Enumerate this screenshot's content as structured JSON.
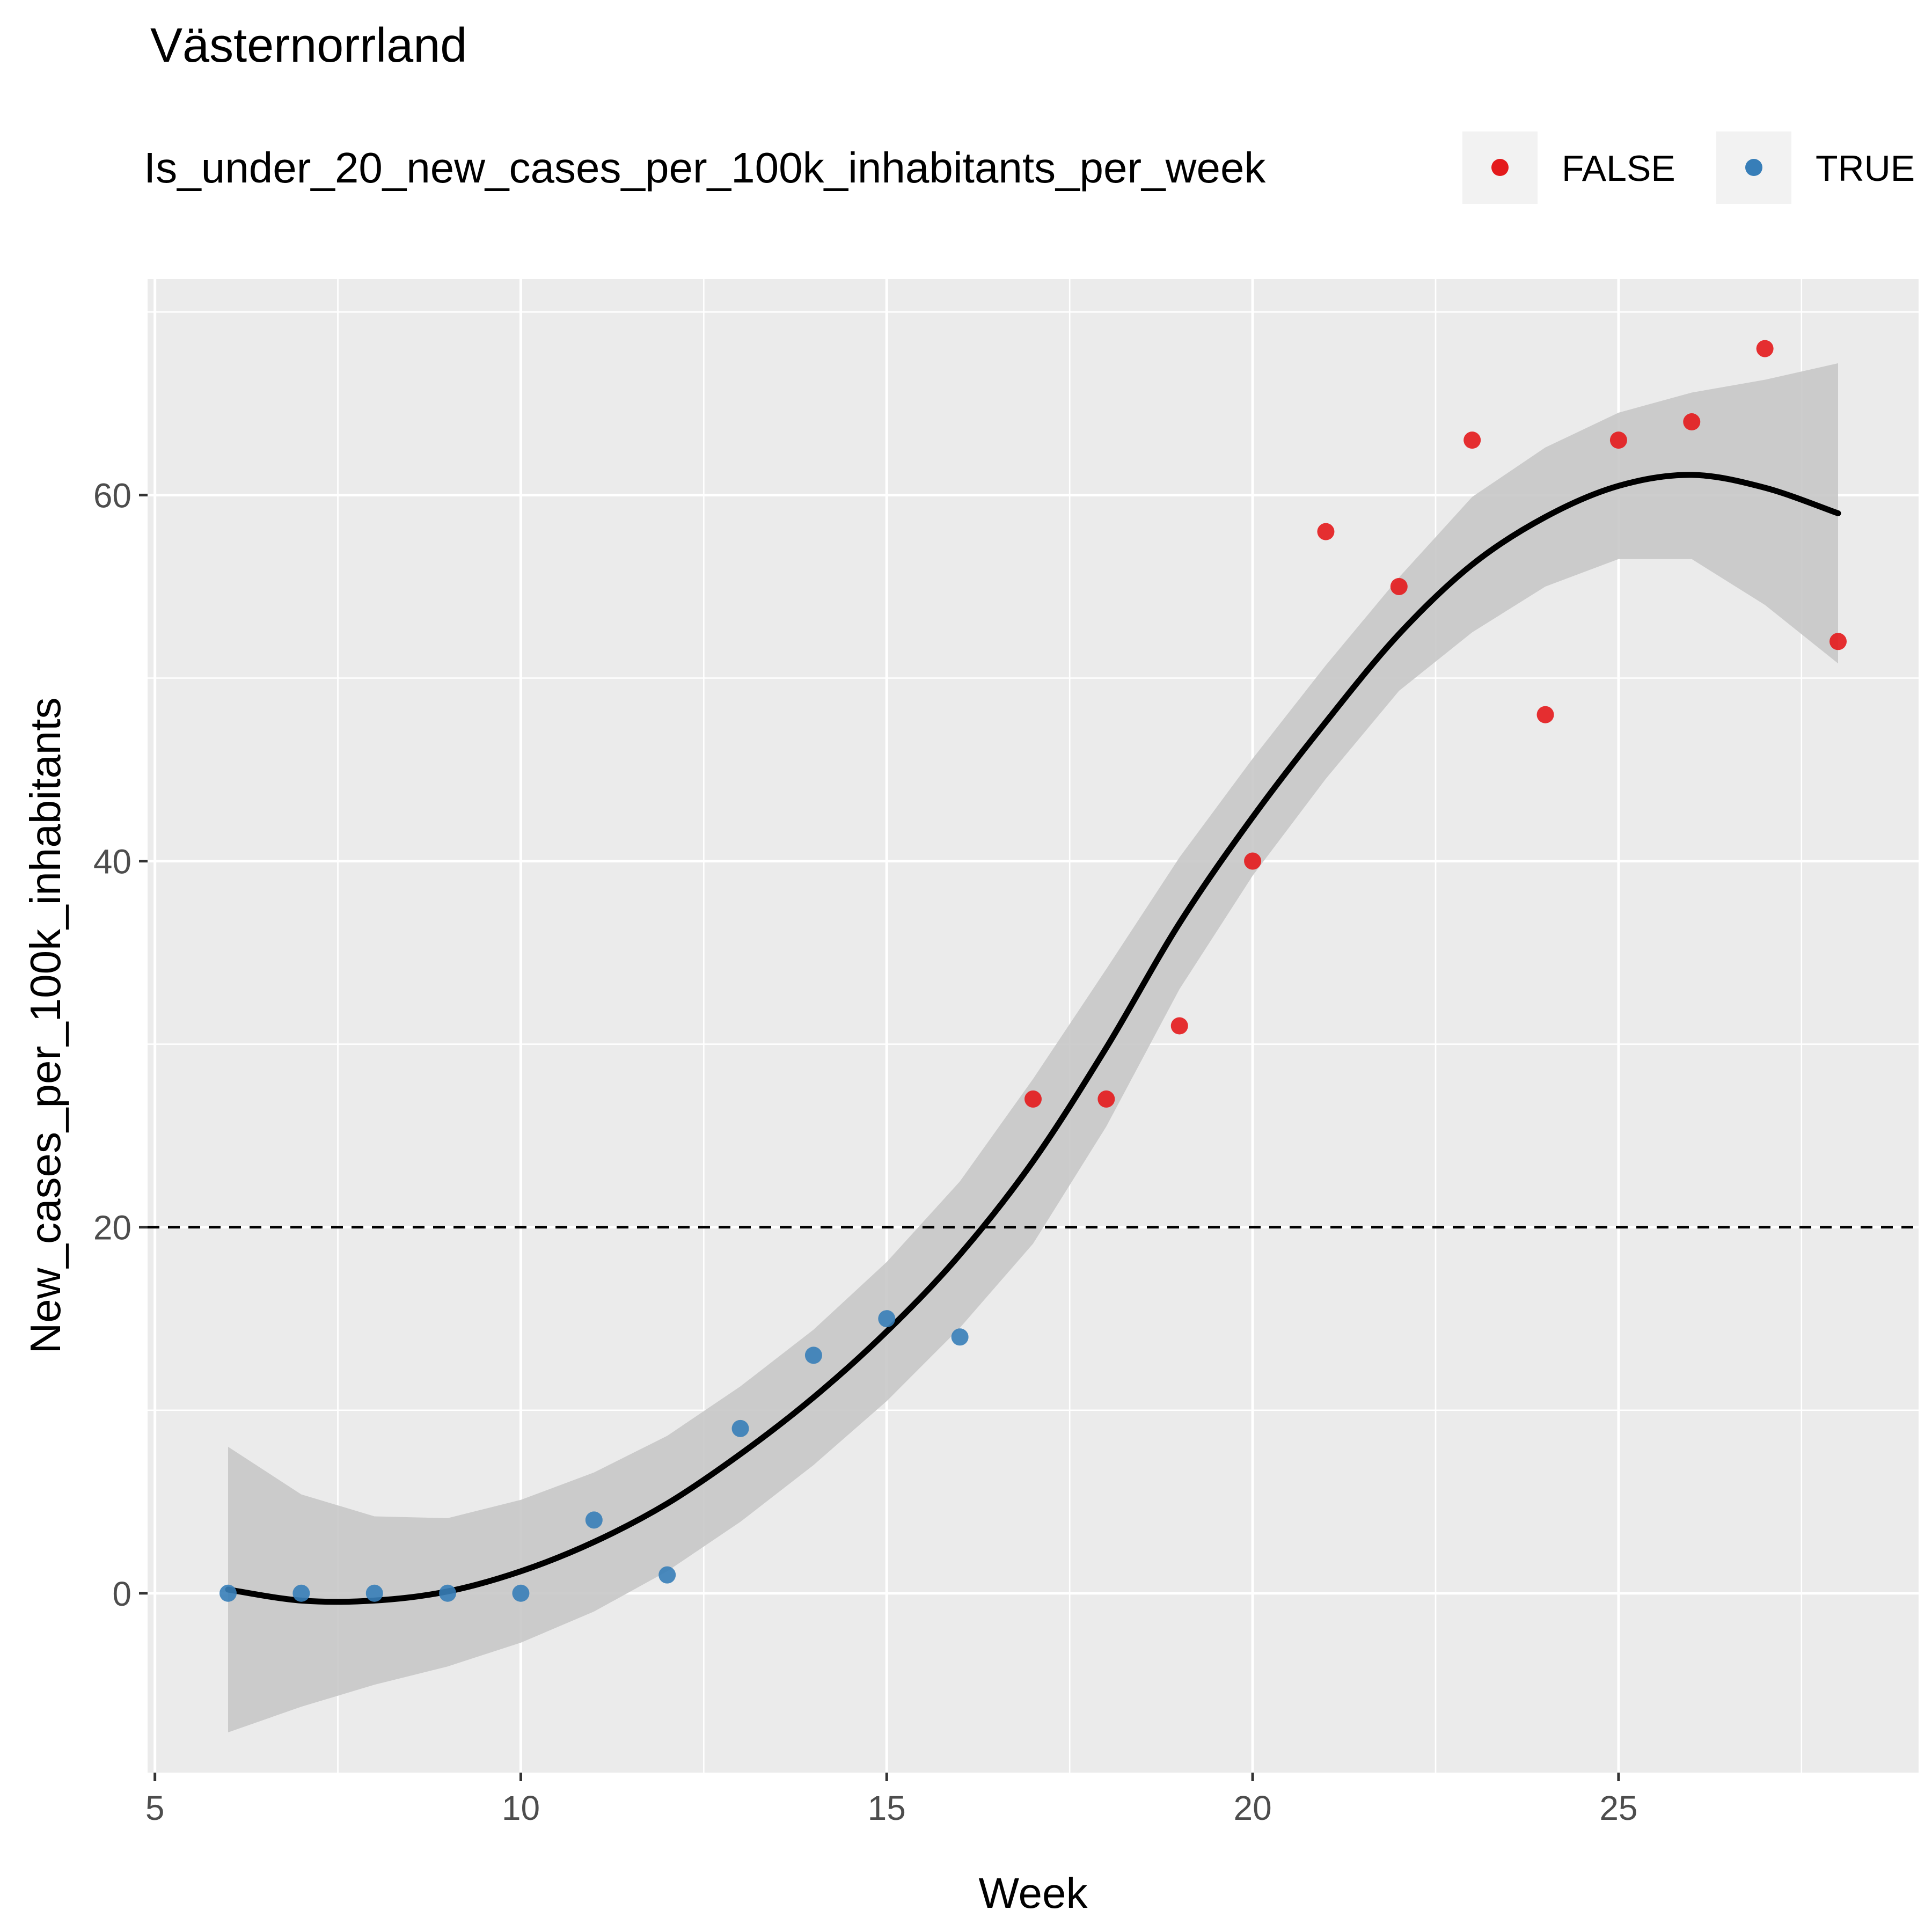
{
  "chart_data": {
    "type": "scatter",
    "title": "Västernorrland",
    "xlabel": "Week",
    "ylabel": "New_cases_per_100k_inhabitants",
    "xlim": [
      4.9,
      29.1
    ],
    "ylim": [
      -9.8,
      71.8
    ],
    "x_ticks": [
      5,
      10,
      15,
      20,
      25
    ],
    "y_ticks": [
      0,
      20,
      40,
      60
    ],
    "grid": true,
    "legend": {
      "title": "Is_under_20_new_cases_per_100k_inhabitants_per_week",
      "position": "top",
      "entries": [
        {
          "label": "FALSE",
          "color": "#e41a1c"
        },
        {
          "label": "TRUE",
          "color": "#377eb8"
        }
      ]
    },
    "reference_line": {
      "y": 20,
      "style": "dashed"
    },
    "series": [
      {
        "name": "FALSE",
        "color": "#e41a1c",
        "points": [
          [
            17,
            27
          ],
          [
            18,
            27
          ],
          [
            19,
            31
          ],
          [
            20,
            40
          ],
          [
            21,
            58
          ],
          [
            22,
            55
          ],
          [
            23,
            63
          ],
          [
            24,
            48
          ],
          [
            25,
            63
          ],
          [
            26,
            64
          ],
          [
            27,
            68
          ],
          [
            28,
            52
          ]
        ]
      },
      {
        "name": "TRUE",
        "color": "#377eb8",
        "points": [
          [
            6,
            0
          ],
          [
            7,
            0
          ],
          [
            8,
            0
          ],
          [
            9,
            0
          ],
          [
            10,
            0
          ],
          [
            11,
            4
          ],
          [
            12,
            1
          ],
          [
            13,
            9
          ],
          [
            14,
            13
          ],
          [
            15,
            15
          ],
          [
            16,
            14
          ]
        ]
      }
    ],
    "smooth": {
      "x": [
        6,
        7,
        8,
        9,
        10,
        11,
        12,
        13,
        14,
        15,
        16,
        17,
        18,
        19,
        20,
        21,
        22,
        23,
        24,
        25,
        26,
        27,
        28
      ],
      "y": [
        0.2,
        -0.4,
        -0.4,
        0.1,
        1.2,
        2.8,
        4.9,
        7.6,
        10.7,
        14.3,
        18.5,
        23.6,
        29.8,
        36.6,
        42.4,
        47.6,
        52.4,
        56.2,
        58.8,
        60.5,
        61.1,
        60.4,
        59.0
      ],
      "ci_lower": [
        -7.6,
        -6.2,
        -5.0,
        -4.0,
        -2.7,
        -1.0,
        1.2,
        3.9,
        7.0,
        10.5,
        14.5,
        19.1,
        25.5,
        33.0,
        39.2,
        44.5,
        49.3,
        52.5,
        55.0,
        56.5,
        56.5,
        54.0,
        50.8
      ],
      "ci_upper": [
        8.0,
        5.4,
        4.2,
        4.1,
        5.1,
        6.6,
        8.6,
        11.3,
        14.4,
        18.1,
        22.5,
        28.1,
        34.1,
        40.2,
        45.6,
        50.7,
        55.5,
        59.9,
        62.6,
        64.5,
        65.6,
        66.3,
        67.2
      ],
      "color": "#000000",
      "band_color": "#c8c8c8"
    }
  }
}
